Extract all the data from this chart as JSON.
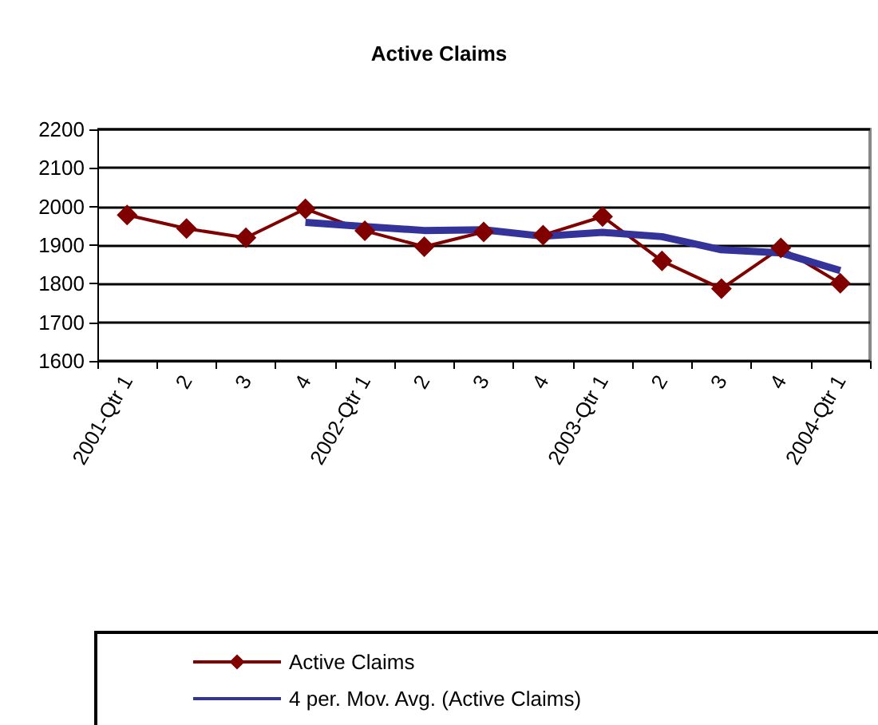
{
  "chart_data": {
    "type": "line",
    "title": "Active Claims",
    "categories": [
      "2001-Qtr 1",
      "2",
      "3",
      "4",
      "2002-Qtr 1",
      "2",
      "3",
      "4",
      "2003-Qtr 1",
      "2",
      "3",
      "4",
      "2004-Qtr 1"
    ],
    "series": [
      {
        "name": "Active Claims",
        "color": "#800000",
        "marker": "diamond",
        "values": [
          1978,
          1943,
          1919,
          1994,
          1937,
          1896,
          1934,
          1926,
          1974,
          1859,
          1787,
          1893,
          1801
        ]
      },
      {
        "name": "4 per. Mov. Avg. (Active Claims)",
        "color": "#333399",
        "marker": "none",
        "values": [
          null,
          null,
          null,
          1959,
          1948,
          1938,
          1940,
          1923,
          1933,
          1922,
          1888,
          1880,
          1834
        ]
      }
    ],
    "ylim": [
      1600,
      2200
    ],
    "yticks": [
      1600,
      1700,
      1800,
      1900,
      2000,
      2100,
      2200
    ],
    "grid": "y",
    "legend": "bottom"
  }
}
